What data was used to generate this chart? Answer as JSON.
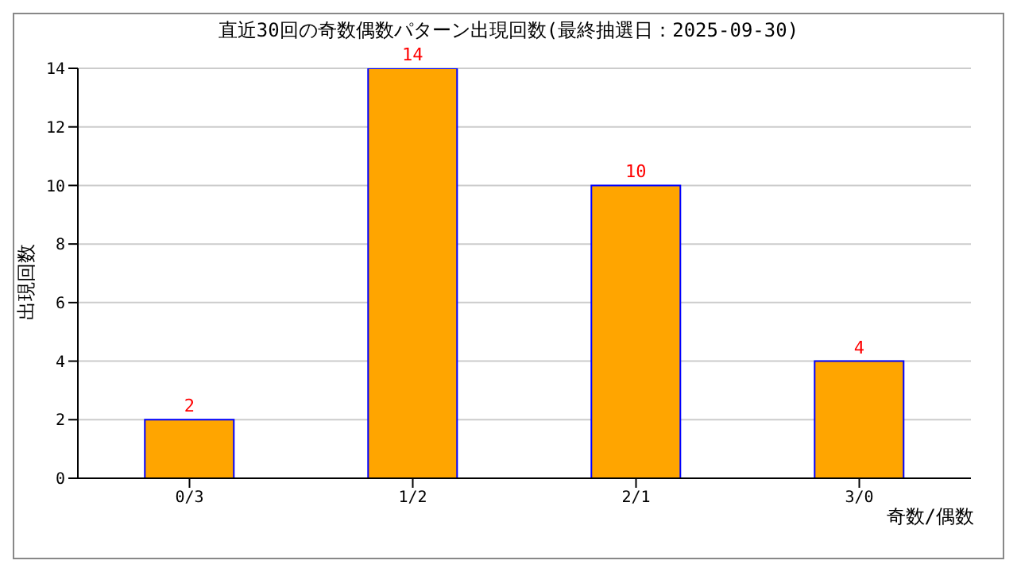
{
  "chart_data": {
    "type": "bar",
    "title": "直近30回の奇数偶数パターン出現回数(最終抽選日：2025-09-30)",
    "xlabel": "奇数/偶数",
    "ylabel": "出現回数",
    "categories": [
      "0/3",
      "1/2",
      "2/1",
      "3/0"
    ],
    "series": [
      {
        "color": "#ffa500",
        "values": [
          2,
          14,
          10,
          4
        ]
      }
    ],
    "ylim": [
      0,
      14
    ],
    "yticks": [
      0,
      2,
      4,
      6,
      8,
      10,
      12,
      14
    ],
    "grid": "y",
    "data_labels": true,
    "legend": false
  }
}
